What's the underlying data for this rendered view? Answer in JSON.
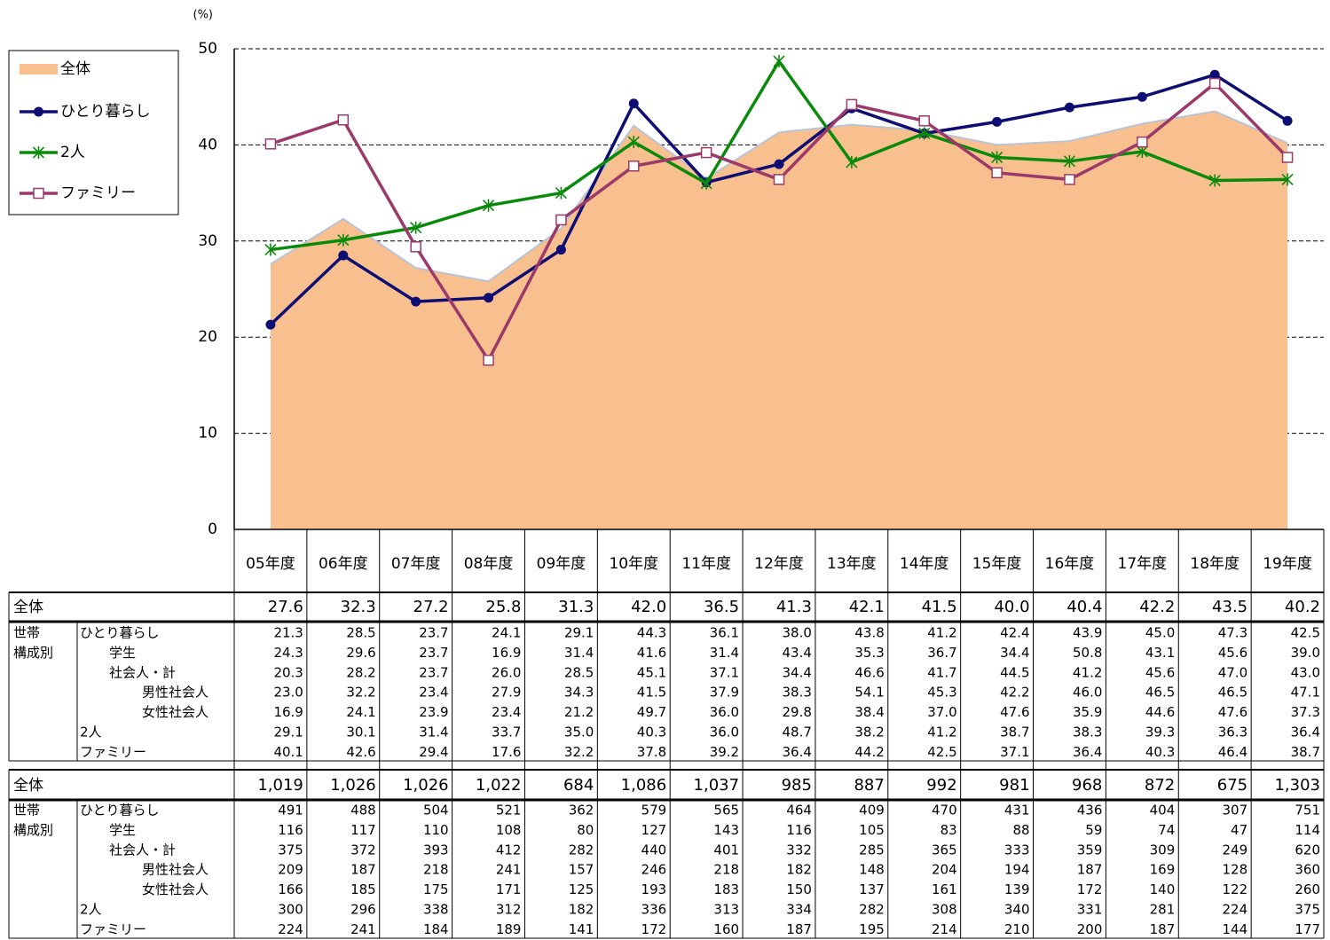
{
  "chart_data": {
    "type": "line",
    "y_unit": "(%)",
    "categories": [
      "05年度",
      "06年度",
      "07年度",
      "08年度",
      "09年度",
      "10年度",
      "11年度",
      "12年度",
      "13年度",
      "14年度",
      "15年度",
      "16年度",
      "17年度",
      "18年度",
      "19年度"
    ],
    "ylim": [
      0,
      50
    ],
    "yticks": [
      0,
      10,
      20,
      30,
      40,
      50
    ],
    "grid": true,
    "series": [
      {
        "name": "全体",
        "type": "area",
        "color": "#f8bf8f",
        "values": [
          27.6,
          32.3,
          27.2,
          25.8,
          31.3,
          42.0,
          36.5,
          41.3,
          42.1,
          41.5,
          40.0,
          40.4,
          42.2,
          43.5,
          40.2
        ],
        "value_labels": [
          "27.6",
          "32.3",
          "27.2",
          "25.8",
          "31.3",
          "42.0",
          "36.5",
          "41.3",
          "42.1",
          "41.5",
          "40.0",
          "40.4",
          "42.2",
          "43.5",
          "40.2"
        ],
        "counts": [
          "1,019",
          "1,026",
          "1,026",
          "1,022",
          "684",
          "1,086",
          "1,037",
          "985",
          "887",
          "992",
          "981",
          "968",
          "872",
          "675",
          "1,303"
        ]
      },
      {
        "name": "ひとり暮らし",
        "type": "line",
        "marker": "circle",
        "color": "#0d0d73",
        "values": [
          21.3,
          28.5,
          23.7,
          24.1,
          29.1,
          44.3,
          36.1,
          38.0,
          43.8,
          41.2,
          42.4,
          43.9,
          45.0,
          47.3,
          42.5
        ],
        "value_labels": [
          "21.3",
          "28.5",
          "23.7",
          "24.1",
          "29.1",
          "44.3",
          "36.1",
          "38.0",
          "43.8",
          "41.2",
          "42.4",
          "43.9",
          "45.0",
          "47.3",
          "42.5"
        ],
        "counts": [
          "491",
          "488",
          "504",
          "521",
          "362",
          "579",
          "565",
          "464",
          "409",
          "470",
          "431",
          "436",
          "404",
          "307",
          "751"
        ]
      },
      {
        "name": "2人",
        "type": "line",
        "marker": "star",
        "color": "#0a8a0a",
        "values": [
          29.1,
          30.1,
          31.4,
          33.7,
          35.0,
          40.3,
          36.0,
          48.7,
          38.2,
          41.2,
          38.7,
          38.3,
          39.3,
          36.3,
          36.4
        ],
        "value_labels": [
          "29.1",
          "30.1",
          "31.4",
          "33.7",
          "35.0",
          "40.3",
          "36.0",
          "48.7",
          "38.2",
          "41.2",
          "38.7",
          "38.3",
          "39.3",
          "36.3",
          "36.4"
        ],
        "counts": [
          "300",
          "296",
          "338",
          "312",
          "182",
          "336",
          "313",
          "334",
          "282",
          "308",
          "340",
          "331",
          "281",
          "224",
          "375"
        ]
      },
      {
        "name": "ファミリー",
        "type": "line",
        "marker": "square",
        "color": "#9b3a6a",
        "values": [
          40.1,
          42.6,
          29.4,
          17.6,
          32.2,
          37.8,
          39.2,
          36.4,
          44.2,
          42.5,
          37.1,
          36.4,
          40.3,
          46.4,
          38.7
        ],
        "value_labels": [
          "40.1",
          "42.6",
          "29.4",
          "17.6",
          "32.2",
          "37.8",
          "39.2",
          "36.4",
          "44.2",
          "42.5",
          "37.1",
          "36.4",
          "40.3",
          "46.4",
          "38.7"
        ],
        "counts": [
          "224",
          "241",
          "184",
          "189",
          "141",
          "172",
          "160",
          "187",
          "195",
          "214",
          "210",
          "200",
          "187",
          "144",
          "177"
        ]
      }
    ]
  },
  "table": {
    "group_label": [
      "世帯",
      "構成別"
    ],
    "rows": [
      {
        "label": "学生",
        "rates": [
          "24.3",
          "29.6",
          "23.7",
          "16.9",
          "31.4",
          "41.6",
          "31.4",
          "43.4",
          "35.3",
          "36.7",
          "34.4",
          "50.8",
          "43.1",
          "45.6",
          "39.0"
        ],
        "counts": [
          "116",
          "117",
          "110",
          "108",
          "80",
          "127",
          "143",
          "116",
          "105",
          "83",
          "88",
          "59",
          "74",
          "47",
          "114"
        ]
      },
      {
        "label": "社会人・計",
        "rates": [
          "20.3",
          "28.2",
          "23.7",
          "26.0",
          "28.5",
          "45.1",
          "37.1",
          "34.4",
          "46.6",
          "41.7",
          "44.5",
          "41.2",
          "45.6",
          "47.0",
          "43.0"
        ],
        "counts": [
          "375",
          "372",
          "393",
          "412",
          "282",
          "440",
          "401",
          "332",
          "285",
          "365",
          "333",
          "359",
          "309",
          "249",
          "620"
        ]
      },
      {
        "label": "男性社会人",
        "rates": [
          "23.0",
          "32.2",
          "23.4",
          "27.9",
          "34.3",
          "41.5",
          "37.9",
          "38.3",
          "54.1",
          "45.3",
          "42.2",
          "46.0",
          "46.5",
          "46.5",
          "47.1"
        ],
        "counts": [
          "209",
          "187",
          "218",
          "241",
          "157",
          "246",
          "218",
          "182",
          "148",
          "204",
          "194",
          "187",
          "169",
          "128",
          "360"
        ]
      },
      {
        "label": "女性社会人",
        "rates": [
          "16.9",
          "24.1",
          "23.9",
          "23.4",
          "21.2",
          "49.7",
          "36.0",
          "29.8",
          "38.4",
          "37.0",
          "47.6",
          "35.9",
          "44.6",
          "47.6",
          "37.3"
        ],
        "counts": [
          "166",
          "185",
          "175",
          "171",
          "125",
          "193",
          "183",
          "150",
          "137",
          "161",
          "139",
          "172",
          "140",
          "122",
          "260"
        ]
      }
    ]
  }
}
